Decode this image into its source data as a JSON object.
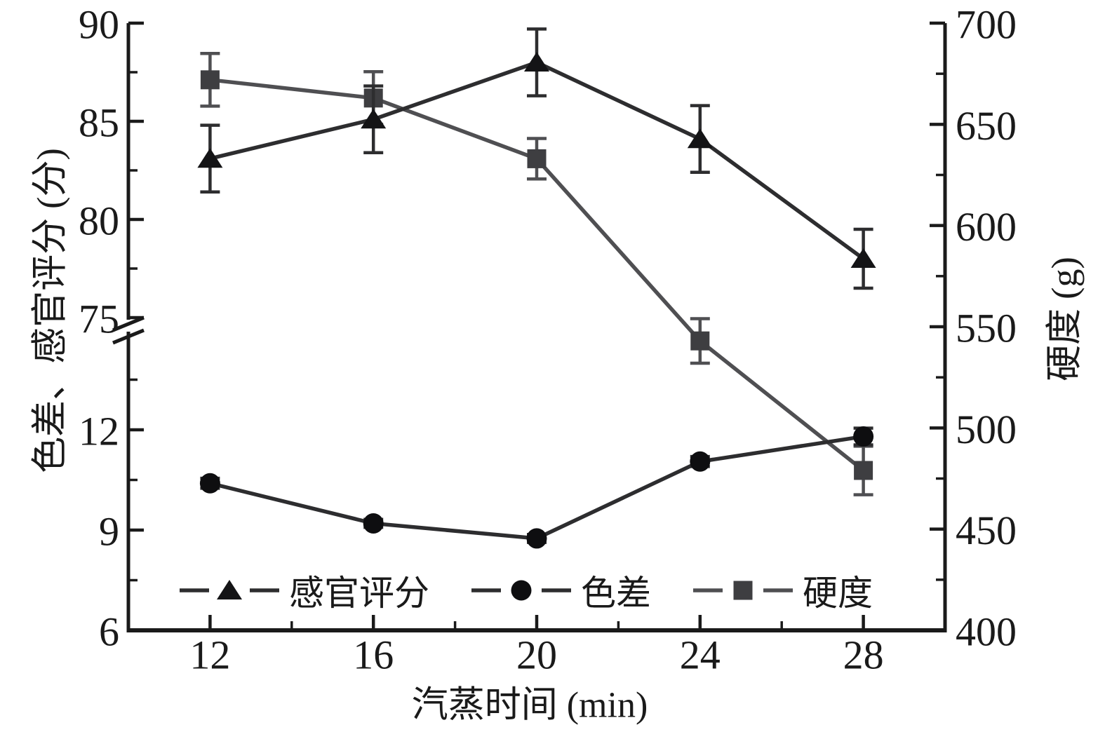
{
  "chart_data": {
    "type": "line",
    "xlabel": "汽蒸时间 (min)",
    "x": [
      12,
      16,
      20,
      24,
      28
    ],
    "x_axis": {
      "min": 10,
      "max": 30,
      "major_ticks": [
        12,
        16,
        20,
        24,
        28
      ],
      "minor_ticks": [
        14,
        18,
        22,
        26
      ]
    },
    "left_axis": {
      "label": "色差、感官评分 (分)",
      "broken": true,
      "upper": {
        "min": 75,
        "max": 90,
        "major_ticks": [
          90,
          85,
          80,
          75
        ],
        "minor_ticks": [
          87.5,
          82.5,
          77.5
        ]
      },
      "lower": {
        "min": 6,
        "max": 12,
        "major_ticks": [
          12,
          9,
          6
        ],
        "minor_ticks": [
          13.5,
          10.5,
          7.5
        ]
      }
    },
    "right_axis": {
      "label": "硬度 (g)",
      "min": 400,
      "max": 700,
      "major_ticks": [
        700,
        650,
        600,
        550,
        500,
        450,
        400
      ],
      "minor_ticks": [
        675,
        625,
        575,
        525,
        475,
        425
      ]
    },
    "series": [
      {
        "id": "sensory-score",
        "name": "感官评分",
        "marker": "triangle",
        "axis": "left-upper",
        "color": "#141416",
        "line_color": "#2d2d2f",
        "values": [
          83.1,
          85.1,
          88.0,
          84.1,
          78.0
        ],
        "errors": [
          1.7,
          1.7,
          1.7,
          1.7,
          1.5
        ]
      },
      {
        "id": "color-difference",
        "name": "色差",
        "marker": "circle",
        "axis": "left-lower",
        "color": "#0e0e10",
        "line_color": "#2d2d2f",
        "values": [
          10.4,
          9.2,
          8.75,
          11.05,
          11.8
        ],
        "errors": [
          0.15,
          0.12,
          0.12,
          0.15,
          0.25
        ]
      },
      {
        "id": "hardness",
        "name": "硬度",
        "marker": "square",
        "axis": "right",
        "color": "#3e3e41",
        "line_color": "#4f4f52",
        "values": [
          672,
          663,
          633,
          543,
          479
        ],
        "errors": [
          13,
          13,
          10,
          11,
          12
        ]
      }
    ],
    "legend_position": "bottom-inside",
    "grid": false,
    "axis_color": "#1a1a1a"
  }
}
